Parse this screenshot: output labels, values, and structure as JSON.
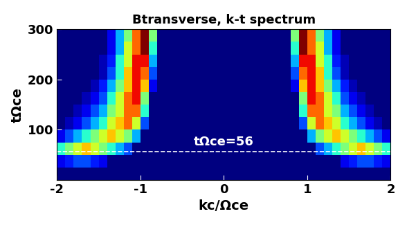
{
  "chart_data": {
    "type": "heatmap",
    "title": "Btransverse, k-t spectrum",
    "xlabel": "kc/Ωce",
    "ylabel": "tΩce",
    "xlim": [
      -2,
      2
    ],
    "ylim": [
      0,
      300
    ],
    "xticks": [
      -2,
      -1,
      0,
      1,
      2
    ],
    "yticks": [
      100,
      200,
      300
    ],
    "zlim": [
      0,
      1
    ],
    "x_edges": [
      -2.0,
      -1.9,
      -1.8,
      -1.7,
      -1.6,
      -1.5,
      -1.4,
      -1.3,
      -1.2,
      -1.1,
      -1.0,
      -0.9,
      -0.8,
      -0.7,
      -0.6,
      -0.5,
      -0.4,
      -0.3,
      -0.2,
      -0.1,
      0.0,
      0.1,
      0.2,
      0.3,
      0.4,
      0.5,
      0.6,
      0.7,
      0.8,
      0.9,
      1.0,
      1.1,
      1.2,
      1.3,
      1.4,
      1.5,
      1.6,
      1.7,
      1.8,
      1.9,
      2.0
    ],
    "y_edges": [
      0,
      25,
      50,
      75,
      100,
      125,
      150,
      175,
      200,
      225,
      250,
      275,
      300
    ],
    "cells": [
      [
        0,
        0,
        0,
        0,
        0,
        0,
        0,
        0,
        0,
        0,
        0,
        0,
        0,
        0,
        0,
        0,
        0,
        0,
        0,
        0,
        0,
        0,
        0,
        0,
        0,
        0,
        0,
        0,
        0,
        0,
        0,
        0,
        0,
        0,
        0,
        0,
        0,
        0,
        0,
        0
      ],
      [
        0.1,
        0.15,
        0.2,
        0.2,
        0.15,
        0.1,
        0,
        0,
        0,
        0,
        0,
        0,
        0,
        0,
        0,
        0,
        0,
        0,
        0,
        0,
        0,
        0,
        0,
        0,
        0,
        0,
        0,
        0,
        0,
        0,
        0,
        0,
        0,
        0,
        0.1,
        0.15,
        0.2,
        0.2,
        0.15,
        0.1
      ],
      [
        0.4,
        0.5,
        0.6,
        0.7,
        0.6,
        0.5,
        0.4,
        0.3,
        0.2,
        0,
        0,
        0,
        0,
        0,
        0,
        0,
        0,
        0,
        0,
        0,
        0,
        0,
        0,
        0,
        0,
        0,
        0,
        0,
        0,
        0,
        0,
        0.2,
        0.3,
        0.4,
        0.5,
        0.6,
        0.7,
        0.6,
        0.5,
        0.4
      ],
      [
        0.1,
        0.2,
        0.3,
        0.4,
        0.5,
        0.6,
        0.7,
        0.6,
        0.5,
        0.3,
        0,
        0,
        0,
        0,
        0,
        0,
        0,
        0,
        0,
        0,
        0,
        0,
        0,
        0,
        0,
        0,
        0,
        0,
        0,
        0,
        0.3,
        0.5,
        0.6,
        0.7,
        0.6,
        0.5,
        0.4,
        0.3,
        0.2,
        0.1
      ],
      [
        0,
        0.05,
        0.1,
        0.2,
        0.3,
        0.4,
        0.6,
        0.7,
        0.8,
        0.6,
        0.2,
        0,
        0,
        0,
        0,
        0,
        0,
        0,
        0,
        0,
        0,
        0,
        0,
        0,
        0,
        0,
        0,
        0,
        0,
        0.2,
        0.6,
        0.8,
        0.7,
        0.6,
        0.4,
        0.3,
        0.2,
        0.1,
        0.05,
        0
      ],
      [
        0,
        0,
        0.05,
        0.1,
        0.2,
        0.3,
        0.5,
        0.6,
        0.8,
        0.8,
        0.4,
        0,
        0,
        0,
        0,
        0,
        0,
        0,
        0,
        0,
        0,
        0,
        0,
        0,
        0,
        0,
        0,
        0,
        0,
        0.4,
        0.8,
        0.8,
        0.6,
        0.5,
        0.3,
        0.2,
        0.1,
        0.05,
        0,
        0
      ],
      [
        0,
        0,
        0,
        0.05,
        0.1,
        0.2,
        0.4,
        0.6,
        0.8,
        0.9,
        0.5,
        0,
        0,
        0,
        0,
        0,
        0,
        0,
        0,
        0,
        0,
        0,
        0,
        0,
        0,
        0,
        0,
        0,
        0,
        0.5,
        0.9,
        0.8,
        0.6,
        0.4,
        0.2,
        0.1,
        0.05,
        0,
        0,
        0
      ],
      [
        0,
        0,
        0,
        0,
        0.05,
        0.15,
        0.3,
        0.5,
        0.7,
        0.9,
        0.7,
        0.1,
        0,
        0,
        0,
        0,
        0,
        0,
        0,
        0,
        0,
        0,
        0,
        0,
        0,
        0,
        0,
        0,
        0.1,
        0.7,
        0.9,
        0.7,
        0.5,
        0.3,
        0.15,
        0.05,
        0,
        0,
        0,
        0
      ],
      [
        0,
        0,
        0,
        0,
        0,
        0.05,
        0.2,
        0.4,
        0.7,
        0.9,
        0.8,
        0.2,
        0,
        0,
        0,
        0,
        0,
        0,
        0,
        0,
        0,
        0,
        0,
        0,
        0,
        0,
        0,
        0,
        0.2,
        0.8,
        0.9,
        0.7,
        0.4,
        0.2,
        0.05,
        0,
        0,
        0,
        0,
        0
      ],
      [
        0,
        0,
        0,
        0,
        0,
        0.05,
        0.15,
        0.4,
        0.6,
        0.9,
        0.9,
        0.3,
        0,
        0,
        0,
        0,
        0,
        0,
        0,
        0,
        0,
        0,
        0,
        0,
        0,
        0,
        0,
        0,
        0.3,
        0.9,
        0.9,
        0.6,
        0.4,
        0.15,
        0.05,
        0,
        0,
        0,
        0,
        0
      ],
      [
        0,
        0,
        0,
        0,
        0,
        0,
        0.1,
        0.3,
        0.6,
        0.8,
        1.0,
        0.4,
        0,
        0,
        0,
        0,
        0,
        0,
        0,
        0,
        0,
        0,
        0,
        0,
        0,
        0,
        0,
        0,
        0.4,
        1.0,
        0.8,
        0.6,
        0.3,
        0.1,
        0,
        0,
        0,
        0,
        0,
        0
      ],
      [
        0,
        0,
        0,
        0,
        0,
        0,
        0.1,
        0.3,
        0.5,
        0.8,
        1.0,
        0.5,
        0,
        0,
        0,
        0,
        0,
        0,
        0,
        0,
        0,
        0,
        0,
        0,
        0,
        0,
        0,
        0,
        0.5,
        1.0,
        0.8,
        0.5,
        0.3,
        0.1,
        0,
        0,
        0,
        0,
        0,
        0
      ]
    ],
    "annotation": {
      "text": "tΩce=56",
      "y": 56
    }
  }
}
